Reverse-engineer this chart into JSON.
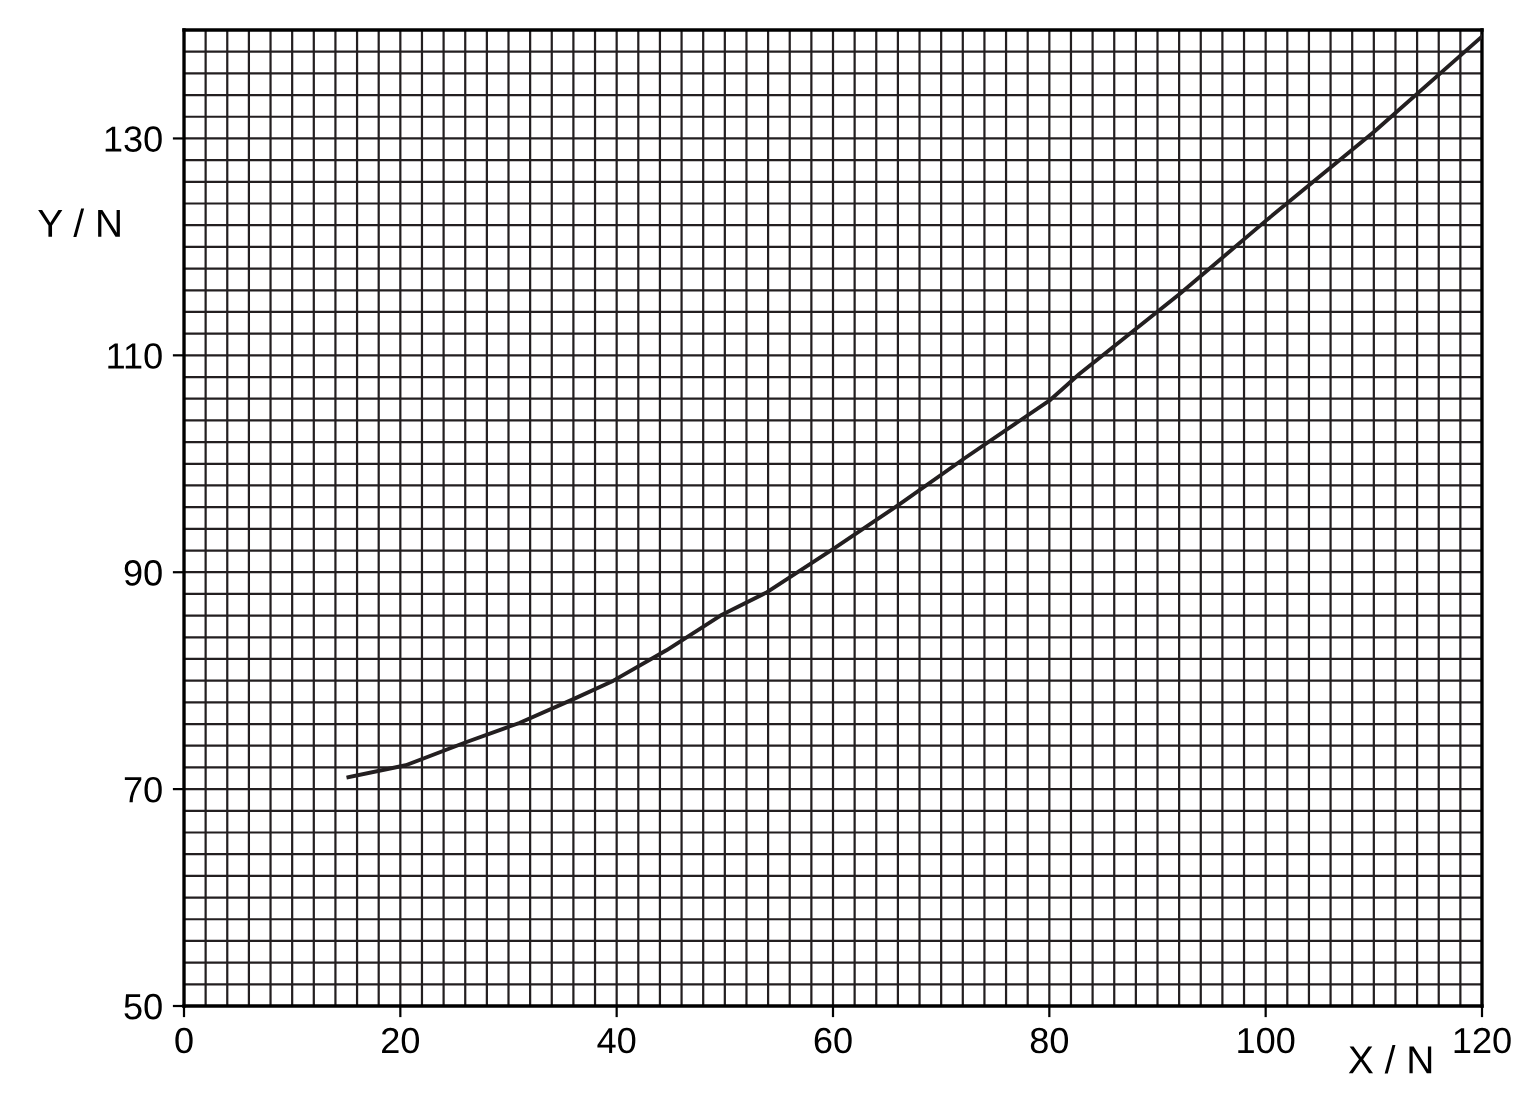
{
  "chart_data": {
    "type": "line",
    "xlabel": "X / N",
    "ylabel": "Y / N",
    "x": [
      15.2,
      20.5,
      26,
      31,
      36,
      39.7,
      44.6,
      49.6,
      53.8,
      60.1,
      66.2,
      72.3,
      80.1,
      82.8,
      92.1,
      100,
      110,
      120
    ],
    "values": [
      71.1,
      72.2,
      74.3,
      76.1,
      78.3,
      80,
      82.8,
      86,
      88.1,
      92.2,
      96.3,
      100.6,
      105.9,
      108.3,
      115.7,
      122.4,
      130.6,
      139.4
    ],
    "color": "#231f20",
    "xlim": [
      0,
      120
    ],
    "ylim": [
      50,
      140
    ],
    "xticks": [
      0,
      20,
      40,
      60,
      80,
      100,
      120
    ],
    "yticks": [
      50,
      70,
      90,
      110,
      130
    ],
    "grid": true
  }
}
